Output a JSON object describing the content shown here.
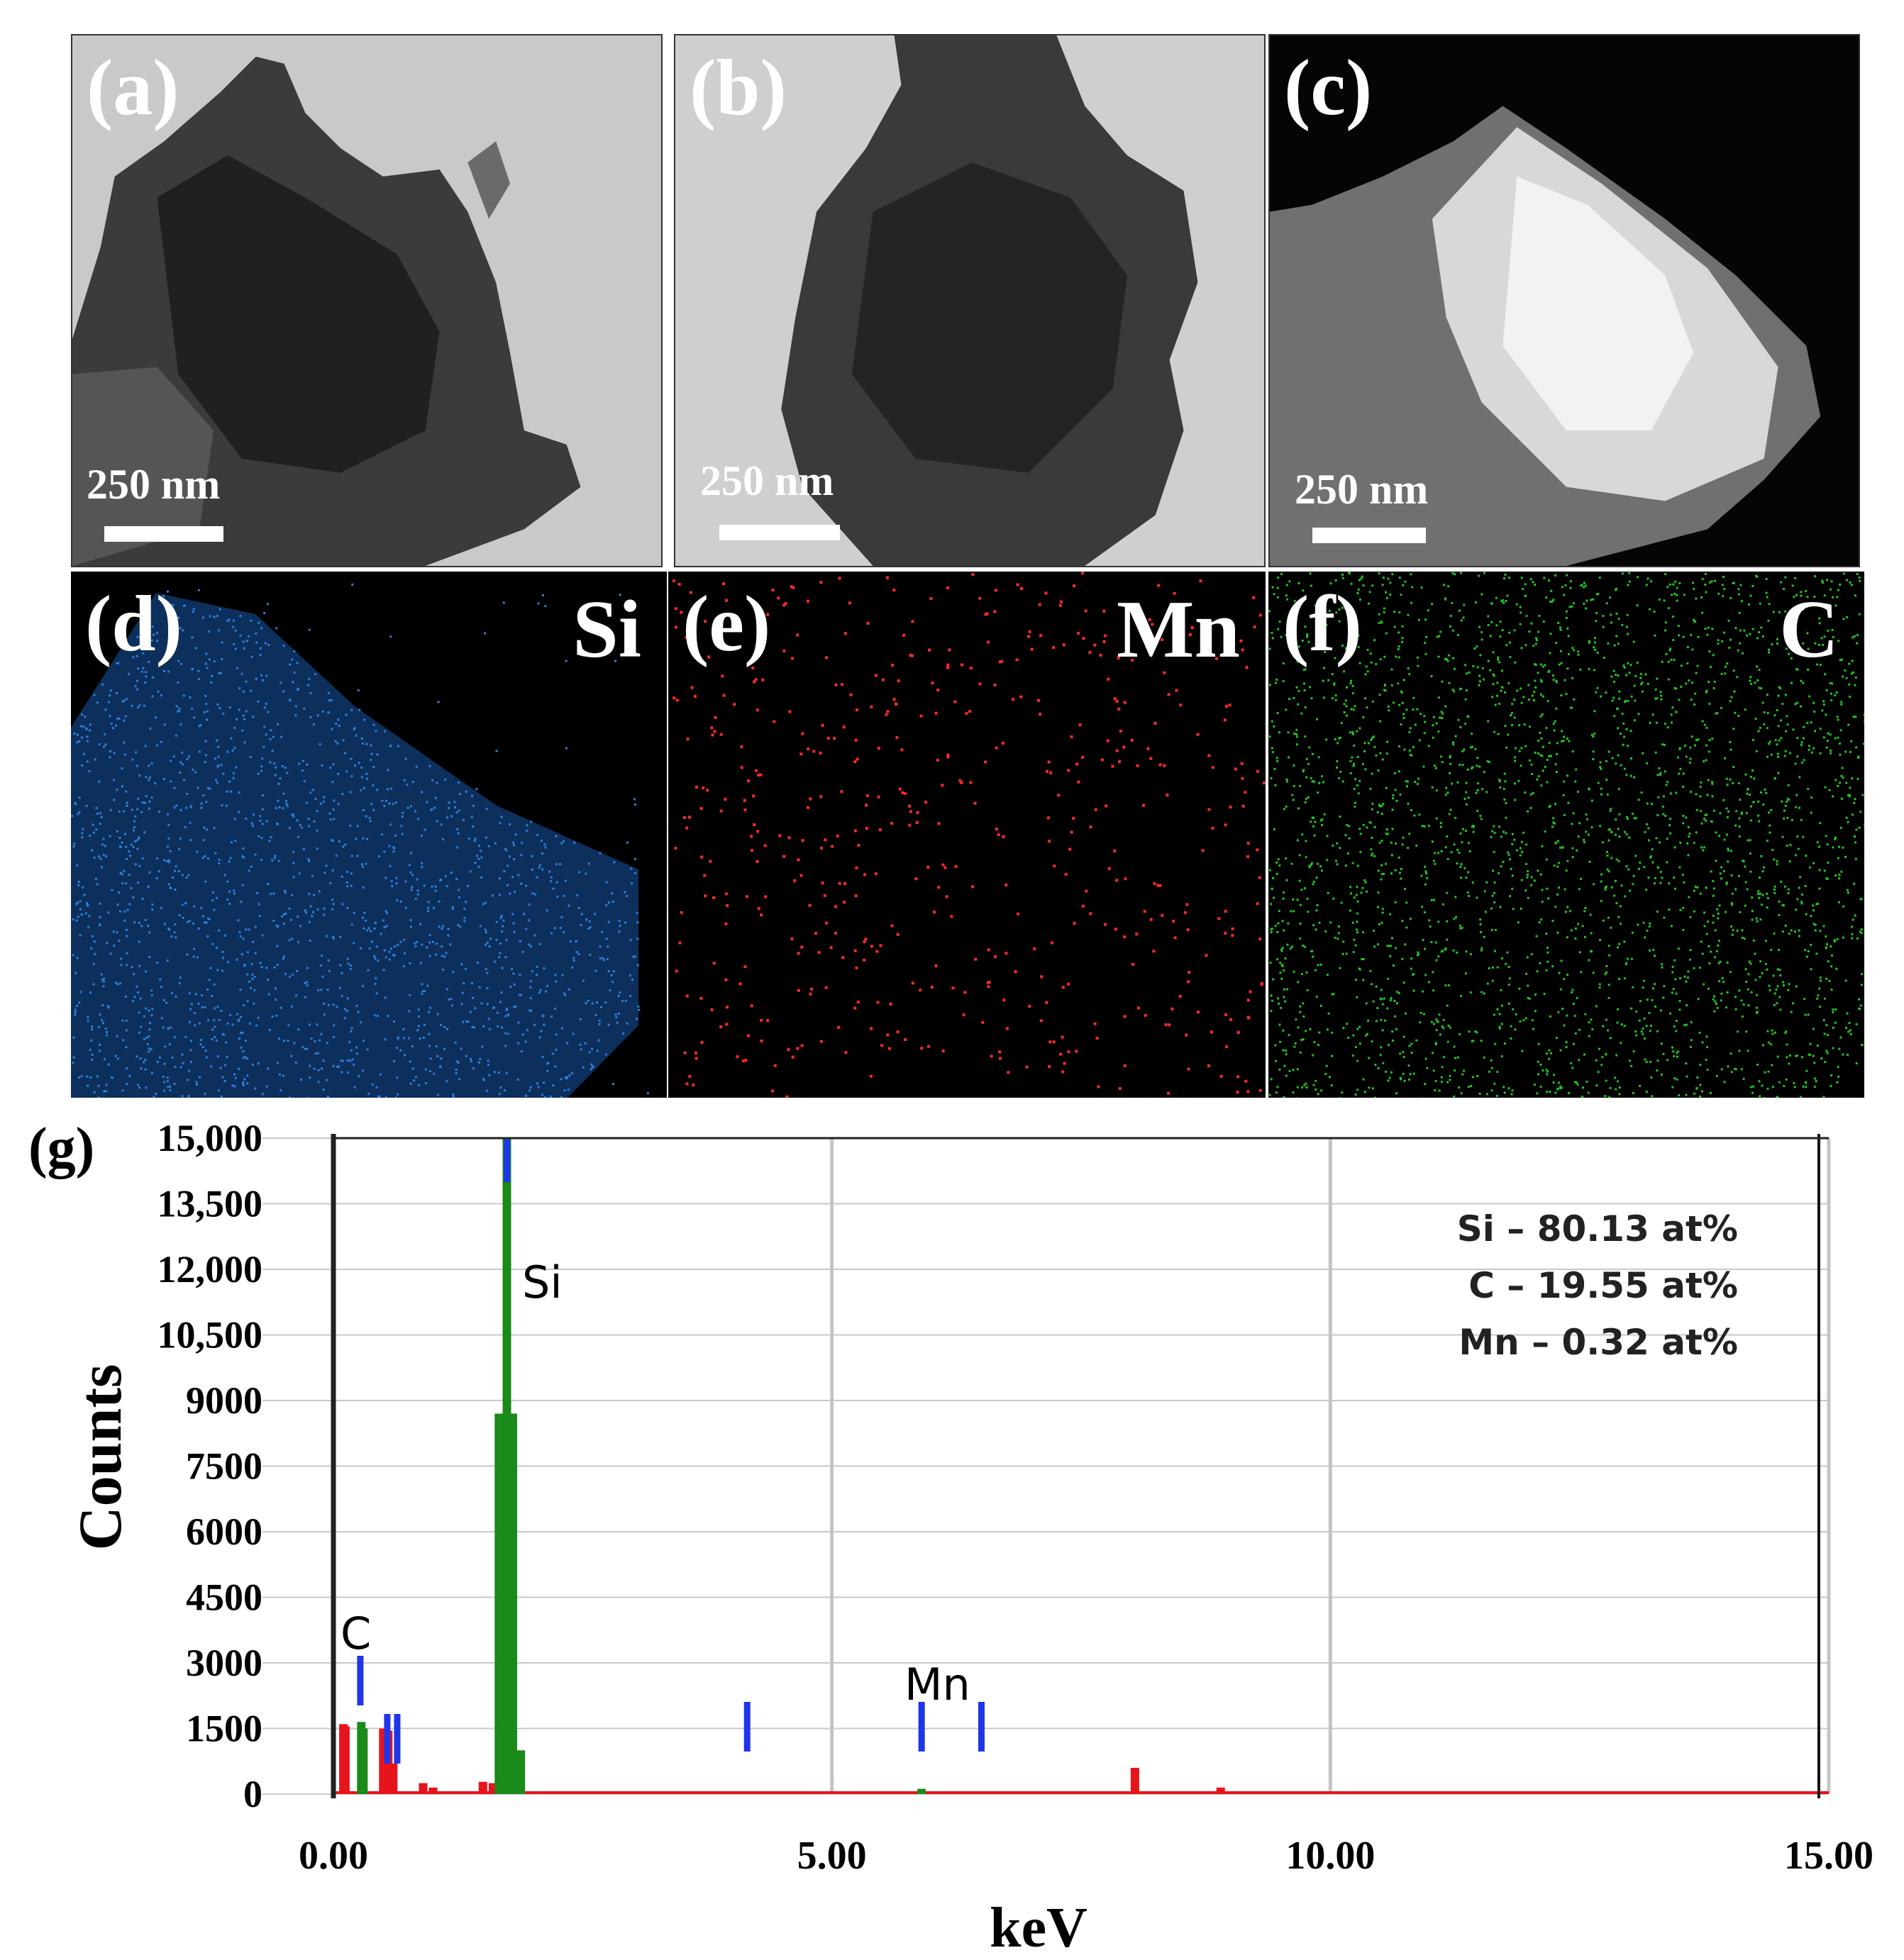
{
  "panels": {
    "a": {
      "label": "(a)",
      "scale_text": "250 nm"
    },
    "b": {
      "label": "(b)",
      "scale_text": "250 nm"
    },
    "c": {
      "label": "(c)",
      "scale_text": "250 nm"
    },
    "d": {
      "label": "(d)",
      "element": "Si",
      "map_color": "#2e7fd8"
    },
    "e": {
      "label": "(e)",
      "element": "Mn",
      "map_color": "#ff2a2a"
    },
    "f": {
      "label": "(f)",
      "element": "C",
      "map_color": "#23c423"
    }
  },
  "chart_data": {
    "type": "bar",
    "panel_label": "(g)",
    "xlabel": "keV",
    "ylabel": "Counts",
    "xlim": [
      0,
      15
    ],
    "ylim": [
      0,
      15000
    ],
    "x_ticks": [
      "0.00",
      "5.00",
      "10.00",
      "15.00"
    ],
    "y_ticks": [
      "0",
      "1500",
      "3000",
      "4500",
      "6000",
      "7500",
      "9000",
      "10,500",
      "12,000",
      "13,500",
      "15,000"
    ],
    "grid": true,
    "series": [
      {
        "color": "#e8141b",
        "points": [
          [
            0.1,
            1600
          ],
          [
            0.12,
            1550
          ],
          [
            0.3,
            1500
          ],
          [
            0.5,
            1500
          ],
          [
            0.55,
            1450
          ],
          [
            0.6,
            700
          ],
          [
            0.9,
            250
          ],
          [
            1.0,
            150
          ],
          [
            1.5,
            280
          ],
          [
            1.6,
            250
          ],
          [
            1.7,
            300
          ],
          [
            1.85,
            350
          ],
          [
            8.04,
            600
          ],
          [
            8.9,
            150
          ]
        ]
      },
      {
        "color": "#1a8a1a",
        "points": [
          [
            0.28,
            1650
          ],
          [
            0.3,
            1500
          ],
          [
            1.66,
            8700
          ],
          [
            1.74,
            15000
          ],
          [
            1.8,
            8700
          ],
          [
            1.88,
            1000
          ],
          [
            5.9,
            120
          ]
        ]
      }
    ],
    "line_markers": {
      "color": "#1f35e8",
      "x": [
        0.27,
        0.54,
        0.64,
        4.15,
        5.9,
        6.5,
        1.74
      ]
    },
    "peak_labels": [
      "C",
      "Si",
      "Mn"
    ],
    "composition": [
      "Si – 80.13 at%",
      "C – 19.55 at%",
      "Mn – 0.32 at%"
    ]
  }
}
